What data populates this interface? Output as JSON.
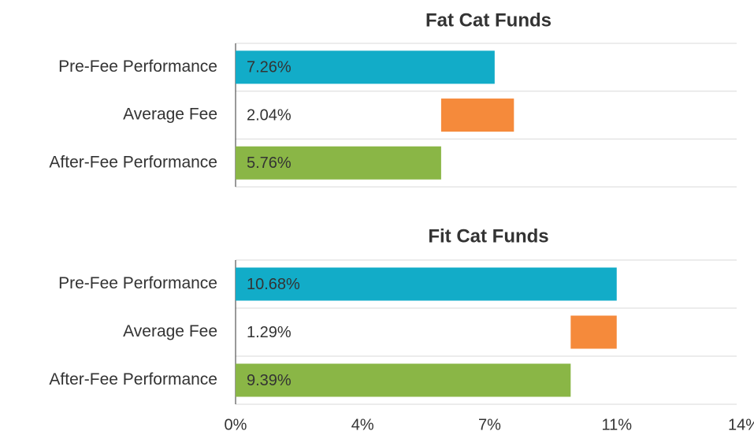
{
  "chart_data": [
    {
      "type": "bar",
      "title": "Fat Cat Funds",
      "categories": [
        "Pre-Fee Performance",
        "Average Fee",
        "After-Fee Performance"
      ],
      "values": [
        7.26,
        2.04,
        5.76
      ],
      "value_labels": [
        "7.26%",
        "2.04%",
        "5.76%"
      ],
      "colors": [
        "#12acc8",
        "#f58a3b",
        "#8ab646"
      ],
      "xlim": [
        0,
        14.24
      ]
    },
    {
      "type": "bar",
      "title": "Fit Cat Funds",
      "categories": [
        "Pre-Fee Performance",
        "Average Fee",
        "After-Fee Performance"
      ],
      "values": [
        10.68,
        1.29,
        9.39
      ],
      "value_labels": [
        "10.68%",
        "1.29%",
        "9.39%"
      ],
      "colors": [
        "#12acc8",
        "#f58a3b",
        "#8ab646"
      ],
      "xlim": [
        0,
        14.24
      ],
      "xticks": [
        {
          "value": 0,
          "label": "0%"
        },
        {
          "value": 3.56,
          "label": "4%"
        },
        {
          "value": 7.12,
          "label": "7%"
        },
        {
          "value": 10.68,
          "label": "11%"
        },
        {
          "value": 14.24,
          "label": "14%"
        }
      ]
    }
  ]
}
